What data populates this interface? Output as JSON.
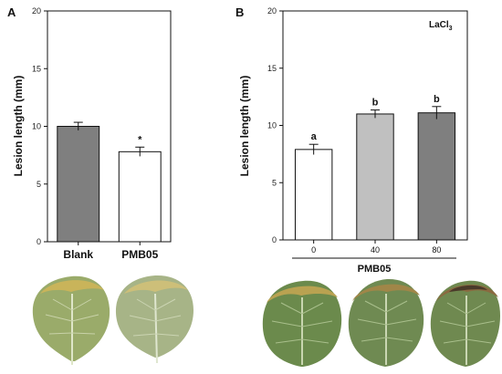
{
  "chart_data": [
    {
      "type": "bar",
      "panel": "A",
      "ylabel": "Lesion length (mm)",
      "ylim": [
        0,
        20
      ],
      "yticks": [
        0,
        5,
        10,
        15,
        20
      ],
      "categories": [
        "Blank",
        "PMB05"
      ],
      "values": [
        10.0,
        7.8
      ],
      "errors": [
        0.35,
        0.4
      ],
      "colors": [
        "#7f7f7f",
        "#ffffff"
      ],
      "significance": [
        "",
        "*"
      ],
      "grid": false
    },
    {
      "type": "bar",
      "panel": "B",
      "ylabel": "Lesion length (mm)",
      "ylim": [
        0,
        20
      ],
      "yticks": [
        0,
        5,
        10,
        15,
        20
      ],
      "categories": [
        "0",
        "40",
        "80"
      ],
      "values": [
        7.9,
        11.0,
        11.1
      ],
      "errors": [
        0.45,
        0.35,
        0.55
      ],
      "colors": [
        "#ffffff",
        "#c0c0c0",
        "#7f7f7f"
      ],
      "significance": [
        "a",
        "b",
        "b"
      ],
      "annotation": "LaCl",
      "annotation_subscript": "3",
      "treatment_label": "PMB05",
      "grid": false
    }
  ]
}
